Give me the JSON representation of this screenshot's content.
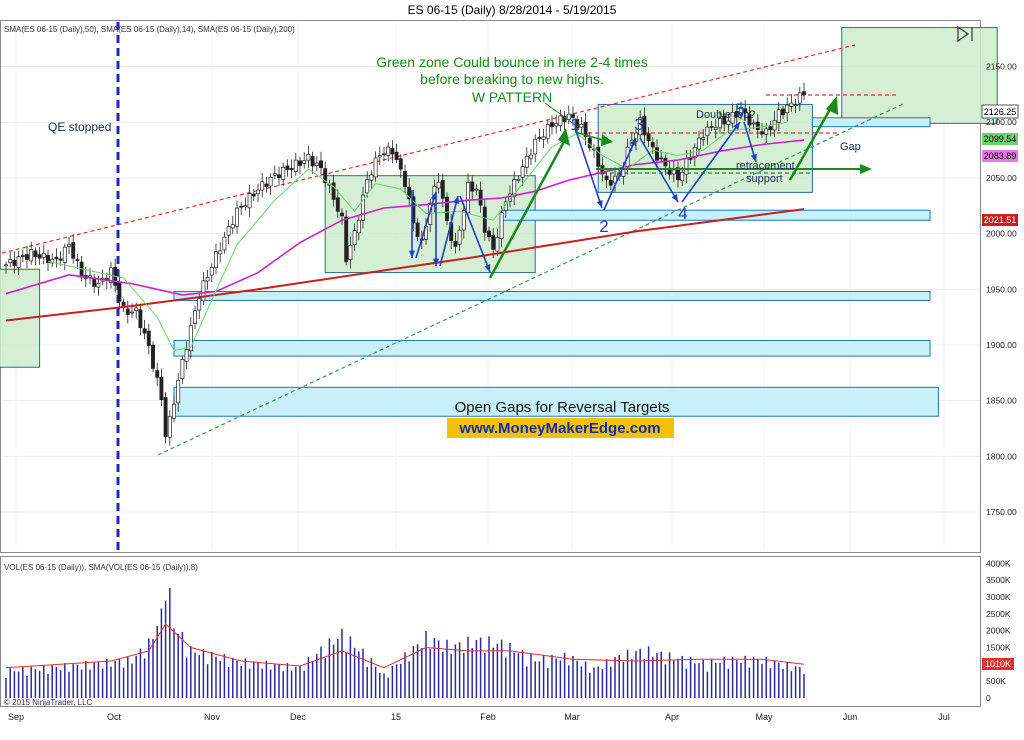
{
  "header": {
    "title": "ES 06-15 (Daily)  8/28/2014 - 5/19/2015"
  },
  "indicator_legend": "SMA(ES 06-15 (Daily),50), SMA(ES 06-15 (Daily),14), SMA(ES 06-15 (Daily),200)",
  "volume_legend": "VOL(ES 06-15 (Daily)), SMA(VOL(ES 06-15 (Daily)),8)",
  "copyright": "© 2015 NinjaTrader, LLC",
  "annotations": {
    "qe": "QE stopped",
    "green_zone_1": "Green zone Could bounce in here 2-4 times",
    "green_zone_2": "before breaking to new highs.",
    "w_pattern": "W PATTERN",
    "double_top": "Double top?",
    "gap": "Gap",
    "retracement": "retracement",
    "support": "support",
    "open_gaps": "Open Gaps for Reversal Targets",
    "website": "www.MoneyMakerEdge.com",
    "wave_labels": [
      "1",
      "2",
      "3",
      "4",
      "5"
    ]
  },
  "price_tags": {
    "last": "2126.25",
    "sma14": "2099.54",
    "sma50": "2083.89",
    "sma200": "2021.51",
    "volume": "1010K"
  },
  "colors": {
    "candle": "#222222",
    "sma14": "#6bd36b",
    "sma50": "#d020d0",
    "sma200": "#c82020",
    "zone_fill": "#cdeccd",
    "gap_fill": "#c8f0fa",
    "gap_stroke": "#2277aa",
    "annotation_green": "#1a8a1a",
    "wave_blue": "#1f3fc8",
    "volume_bar": "#2a2aa0",
    "website_bg": "#f2c200",
    "website_text": "#1a2ab0"
  },
  "chart_data": {
    "type": "candlestick",
    "title": "ES 06-15 (Daily)  8/28/2014 - 5/19/2015",
    "x_tick_labels": [
      "Sep",
      "Oct",
      "Nov",
      "Dec",
      "15",
      "Feb",
      "Mar",
      "Apr",
      "May",
      "Jun",
      "Jul"
    ],
    "y_tick_labels": [
      "2150.00",
      "2100.00",
      "2050.00",
      "2000.00",
      "1950.00",
      "1900.00",
      "1850.00",
      "1800.00",
      "1750.00"
    ],
    "ylim": [
      1715,
      2190
    ],
    "volume_tick_labels": [
      "4000K",
      "3500K",
      "3000K",
      "2500K",
      "2000K",
      "1500K",
      "1000K",
      "500K",
      "0"
    ],
    "volume_ylim": [
      0,
      4100
    ],
    "path_anchors": [
      {
        "x": 0,
        "y": 1972
      },
      {
        "x": 6,
        "y": 1982
      },
      {
        "x": 12,
        "y": 1975
      },
      {
        "x": 15,
        "y": 1990
      },
      {
        "x": 18,
        "y": 1963
      },
      {
        "x": 22,
        "y": 1954
      },
      {
        "x": 25,
        "y": 1966
      },
      {
        "x": 28,
        "y": 1930
      },
      {
        "x": 31,
        "y": 1930
      },
      {
        "x": 34,
        "y": 1898
      },
      {
        "x": 37,
        "y": 1852
      },
      {
        "x": 38,
        "y": 1820
      },
      {
        "x": 39,
        "y": 1832
      },
      {
        "x": 41,
        "y": 1868
      },
      {
        "x": 43,
        "y": 1900
      },
      {
        "x": 46,
        "y": 1945
      },
      {
        "x": 50,
        "y": 1980
      },
      {
        "x": 55,
        "y": 2020
      },
      {
        "x": 60,
        "y": 2040
      },
      {
        "x": 64,
        "y": 2052
      },
      {
        "x": 68,
        "y": 2060
      },
      {
        "x": 72,
        "y": 2068
      },
      {
        "x": 75,
        "y": 2058
      },
      {
        "x": 78,
        "y": 2032
      },
      {
        "x": 80,
        "y": 2012
      },
      {
        "x": 81,
        "y": 1978
      },
      {
        "x": 83,
        "y": 2000
      },
      {
        "x": 86,
        "y": 2048
      },
      {
        "x": 89,
        "y": 2072
      },
      {
        "x": 92,
        "y": 2075
      },
      {
        "x": 95,
        "y": 2046
      },
      {
        "x": 97,
        "y": 2010
      },
      {
        "x": 99,
        "y": 1990
      },
      {
        "x": 101,
        "y": 2028
      },
      {
        "x": 103,
        "y": 2050
      },
      {
        "x": 105,
        "y": 2010
      },
      {
        "x": 107,
        "y": 1985
      },
      {
        "x": 110,
        "y": 2042
      },
      {
        "x": 112,
        "y": 2040
      },
      {
        "x": 114,
        "y": 2005
      },
      {
        "x": 116,
        "y": 1985
      },
      {
        "x": 119,
        "y": 2030
      },
      {
        "x": 122,
        "y": 2052
      },
      {
        "x": 126,
        "y": 2082
      },
      {
        "x": 130,
        "y": 2098
      },
      {
        "x": 134,
        "y": 2106
      },
      {
        "x": 137,
        "y": 2095
      },
      {
        "x": 140,
        "y": 2072
      },
      {
        "x": 143,
        "y": 2045
      },
      {
        "x": 146,
        "y": 2052
      },
      {
        "x": 149,
        "y": 2085
      },
      {
        "x": 151,
        "y": 2100
      },
      {
        "x": 154,
        "y": 2075
      },
      {
        "x": 157,
        "y": 2060
      },
      {
        "x": 160,
        "y": 2050
      },
      {
        "x": 163,
        "y": 2070
      },
      {
        "x": 166,
        "y": 2090
      },
      {
        "x": 169,
        "y": 2098
      },
      {
        "x": 172,
        "y": 2102
      },
      {
        "x": 175,
        "y": 2112
      },
      {
        "x": 178,
        "y": 2096
      },
      {
        "x": 181,
        "y": 2090
      },
      {
        "x": 184,
        "y": 2108
      },
      {
        "x": 187,
        "y": 2116
      },
      {
        "x": 190,
        "y": 2126
      }
    ],
    "sma14_anchors": [
      {
        "x": 10,
        "y": 1975
      },
      {
        "x": 28,
        "y": 1960
      },
      {
        "x": 36,
        "y": 1925
      },
      {
        "x": 40,
        "y": 1895
      },
      {
        "x": 44,
        "y": 1898
      },
      {
        "x": 48,
        "y": 1932
      },
      {
        "x": 55,
        "y": 1990
      },
      {
        "x": 64,
        "y": 2030
      },
      {
        "x": 72,
        "y": 2058
      },
      {
        "x": 78,
        "y": 2042
      },
      {
        "x": 83,
        "y": 2020
      },
      {
        "x": 88,
        "y": 2045
      },
      {
        "x": 94,
        "y": 2040
      },
      {
        "x": 100,
        "y": 2018
      },
      {
        "x": 108,
        "y": 2020
      },
      {
        "x": 116,
        "y": 2012
      },
      {
        "x": 122,
        "y": 2040
      },
      {
        "x": 130,
        "y": 2078
      },
      {
        "x": 136,
        "y": 2090
      },
      {
        "x": 142,
        "y": 2070
      },
      {
        "x": 148,
        "y": 2058
      },
      {
        "x": 154,
        "y": 2075
      },
      {
        "x": 160,
        "y": 2070
      },
      {
        "x": 166,
        "y": 2075
      },
      {
        "x": 172,
        "y": 2092
      },
      {
        "x": 180,
        "y": 2096
      },
      {
        "x": 186,
        "y": 2100
      }
    ],
    "sma50_anchors": [
      {
        "x": 0,
        "y": 1946
      },
      {
        "x": 15,
        "y": 1963
      },
      {
        "x": 30,
        "y": 1955
      },
      {
        "x": 42,
        "y": 1945
      },
      {
        "x": 50,
        "y": 1948
      },
      {
        "x": 60,
        "y": 1965
      },
      {
        "x": 70,
        "y": 1992
      },
      {
        "x": 80,
        "y": 2012
      },
      {
        "x": 90,
        "y": 2023
      },
      {
        "x": 100,
        "y": 2026
      },
      {
        "x": 110,
        "y": 2030
      },
      {
        "x": 118,
        "y": 2032
      },
      {
        "x": 126,
        "y": 2038
      },
      {
        "x": 134,
        "y": 2048
      },
      {
        "x": 142,
        "y": 2055
      },
      {
        "x": 150,
        "y": 2062
      },
      {
        "x": 160,
        "y": 2066
      },
      {
        "x": 170,
        "y": 2074
      },
      {
        "x": 180,
        "y": 2080
      },
      {
        "x": 190,
        "y": 2084
      }
    ],
    "sma200_anchors": [
      {
        "x": 0,
        "y": 1922
      },
      {
        "x": 30,
        "y": 1935
      },
      {
        "x": 60,
        "y": 1950
      },
      {
        "x": 90,
        "y": 1967
      },
      {
        "x": 110,
        "y": 1978
      },
      {
        "x": 130,
        "y": 1990
      },
      {
        "x": 150,
        "y": 2002
      },
      {
        "x": 170,
        "y": 2012
      },
      {
        "x": 190,
        "y": 2022
      }
    ],
    "volume_anchors": [
      {
        "x": 0,
        "y": 850
      },
      {
        "x": 20,
        "y": 1050
      },
      {
        "x": 30,
        "y": 1200
      },
      {
        "x": 34,
        "y": 1700
      },
      {
        "x": 37,
        "y": 2600
      },
      {
        "x": 38,
        "y": 4000
      },
      {
        "x": 40,
        "y": 2300
      },
      {
        "x": 44,
        "y": 1500
      },
      {
        "x": 55,
        "y": 1150
      },
      {
        "x": 70,
        "y": 950
      },
      {
        "x": 75,
        "y": 1500
      },
      {
        "x": 80,
        "y": 2000
      },
      {
        "x": 86,
        "y": 1300
      },
      {
        "x": 90,
        "y": 700
      },
      {
        "x": 95,
        "y": 1300
      },
      {
        "x": 100,
        "y": 1900
      },
      {
        "x": 106,
        "y": 1600
      },
      {
        "x": 112,
        "y": 1800
      },
      {
        "x": 118,
        "y": 1700
      },
      {
        "x": 126,
        "y": 1200
      },
      {
        "x": 134,
        "y": 1300
      },
      {
        "x": 140,
        "y": 900
      },
      {
        "x": 146,
        "y": 1300
      },
      {
        "x": 152,
        "y": 1500
      },
      {
        "x": 158,
        "y": 1300
      },
      {
        "x": 166,
        "y": 1100
      },
      {
        "x": 172,
        "y": 1200
      },
      {
        "x": 180,
        "y": 1200
      },
      {
        "x": 190,
        "y": 900
      }
    ],
    "volume_sma_anchors": [
      {
        "x": 0,
        "y": 900
      },
      {
        "x": 25,
        "y": 1100
      },
      {
        "x": 34,
        "y": 1400
      },
      {
        "x": 38,
        "y": 2200
      },
      {
        "x": 44,
        "y": 1500
      },
      {
        "x": 56,
        "y": 1100
      },
      {
        "x": 70,
        "y": 950
      },
      {
        "x": 80,
        "y": 1400
      },
      {
        "x": 90,
        "y": 900
      },
      {
        "x": 100,
        "y": 1500
      },
      {
        "x": 110,
        "y": 1400
      },
      {
        "x": 120,
        "y": 1400
      },
      {
        "x": 135,
        "y": 1150
      },
      {
        "x": 150,
        "y": 1100
      },
      {
        "x": 165,
        "y": 1150
      },
      {
        "x": 180,
        "y": 1150
      },
      {
        "x": 190,
        "y": 1000
      }
    ],
    "zones": [
      {
        "x0": -2,
        "x1": 8,
        "y0": 1880,
        "y1": 1968
      },
      {
        "x0": 76,
        "x1": 126,
        "y0": 1965,
        "y1": 2052
      },
      {
        "x0": 141,
        "x1": 192,
        "y0": 2037,
        "y1": 2116
      },
      {
        "x0": 199,
        "x1": 236,
        "y0": 2099,
        "y1": 2185
      }
    ],
    "gaps": [
      {
        "x0": 118,
        "x1": 220,
        "y0": 2012,
        "y1": 2021
      },
      {
        "x0": 40,
        "x1": 220,
        "y0": 1940,
        "y1": 1948
      },
      {
        "x0": 40,
        "x1": 220,
        "y0": 1890,
        "y1": 1904
      },
      {
        "x0": 40,
        "x1": 222,
        "y0": 1836,
        "y1": 1862
      },
      {
        "x0": 192,
        "x1": 220,
        "y0": 2096,
        "y1": 2104
      }
    ]
  }
}
